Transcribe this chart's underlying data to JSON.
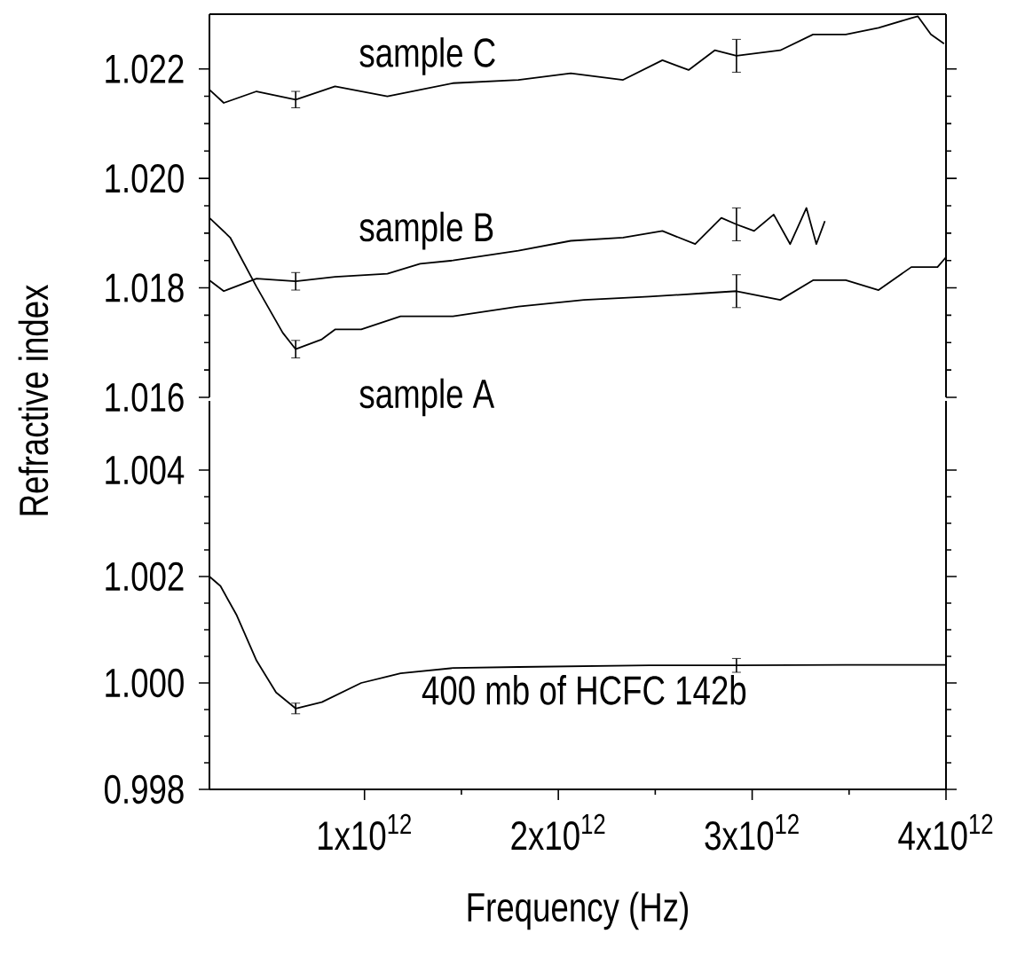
{
  "chart_data": [
    {
      "type": "line",
      "xlim": [
        200000000000.0,
        4000000000000.0
      ],
      "ylim": [
        1.016,
        1.023
      ],
      "yticks": [
        1.016,
        1.018,
        {
          "value": 1.02,
          "label": "1.020"
        },
        1.022
      ],
      "tick_labels": "y",
      "line_style": "solid",
      "marker": "none",
      "series": [
        {
          "name": "sample C",
          "color": "#000000",
          "x": [
            200000000000.0,
            274000000000.0,
            443000000000.0,
            645000000000.0,
            848000000000.0,
            1118000000000.0,
            1456000000000.0,
            1794000000000.0,
            2064000000000.0,
            2334000000000.0,
            2537000000000.0,
            2672000000000.0,
            2807000000000.0,
            2919000000000.0,
            3145000000000.0,
            3314000000000.0,
            3483000000000.0,
            3652000000000.0,
            3821000000000.0,
            3855000000000.0,
            3922000000000.0,
            3990000000000.0
          ],
          "values": [
            1.02162,
            1.02138,
            1.02159,
            1.02144,
            1.02168,
            1.0215,
            1.02174,
            1.0218,
            1.02192,
            1.0218,
            1.02216,
            1.02198,
            1.02234,
            1.02224,
            1.02234,
            1.02263,
            1.02263,
            1.02275,
            1.02293,
            1.02296,
            1.02263,
            1.02246
          ],
          "errors": [
            null,
            null,
            null,
            0.00015,
            null,
            null,
            null,
            null,
            null,
            null,
            null,
            null,
            null,
            0.0003,
            null,
            null,
            null,
            null,
            null,
            null,
            null,
            null
          ]
        },
        {
          "name": "sample B",
          "color": "#000000",
          "x": [
            200000000000.0,
            274000000000.0,
            443000000000.0,
            645000000000.0,
            848000000000.0,
            1118000000000.0,
            1287000000000.0,
            1456000000000.0,
            1794000000000.0,
            2064000000000.0,
            2334000000000.0,
            2537000000000.0,
            2706000000000.0,
            2841000000000.0,
            2919000000000.0,
            3010000000000.0,
            3111000000000.0,
            3196000000000.0,
            3280000000000.0,
            3331000000000.0,
            3375000000000.0
          ],
          "values": [
            1.01814,
            1.01794,
            1.01817,
            1.01812,
            1.0182,
            1.01826,
            1.01844,
            1.0185,
            1.01868,
            1.01886,
            1.01892,
            1.01904,
            1.0188,
            1.01928,
            1.01916,
            1.01904,
            1.01934,
            1.0188,
            1.01946,
            1.0188,
            1.01922
          ],
          "errors": [
            null,
            null,
            null,
            0.00016,
            null,
            null,
            null,
            null,
            null,
            null,
            null,
            null,
            null,
            null,
            0.0003,
            null,
            null,
            null,
            null,
            null,
            null
          ]
        },
        {
          "name": "sample A",
          "color": "#000000",
          "x": [
            200000000000.0,
            307000000000.0,
            443000000000.0,
            578000000000.0,
            645000000000.0,
            780000000000.0,
            848000000000.0,
            983000000000.0,
            1186000000000.0,
            1456000000000.0,
            1794000000000.0,
            2132000000000.0,
            2470000000000.0,
            2740000000000.0,
            2919000000000.0,
            3145000000000.0,
            3314000000000.0,
            3483000000000.0,
            3652000000000.0,
            3821000000000.0,
            3956000000000.0,
            4000000000000.0
          ],
          "values": [
            1.01928,
            1.01892,
            1.01802,
            1.01718,
            1.01688,
            1.01706,
            1.01724,
            1.01724,
            1.01748,
            1.01748,
            1.01766,
            1.01778,
            1.01784,
            1.0179,
            1.01794,
            1.01778,
            1.01814,
            1.01814,
            1.01796,
            1.01838,
            1.01838,
            1.01856
          ],
          "errors": [
            null,
            null,
            null,
            null,
            0.00016,
            null,
            null,
            null,
            null,
            null,
            null,
            null,
            null,
            null,
            0.0003,
            null,
            null,
            null,
            null,
            null,
            null,
            null
          ]
        }
      ]
    },
    {
      "type": "line",
      "xlabel": "Frequency (Hz)",
      "ylabel": "Refractive index",
      "xlim": [
        200000000000.0,
        4000000000000.0
      ],
      "ylim": [
        0.998,
        1.0053
      ],
      "yticks": [
        0.998,
        {
          "value": 1.0,
          "label": "1.000"
        },
        1.002,
        1.004
      ],
      "xticks": [
        {
          "value": 1000000000000.0,
          "label": "1x10$^{12}$"
        },
        {
          "value": 2000000000000.0,
          "label": "2x10$^{12}$"
        },
        {
          "value": 3000000000000.0,
          "label": "3x10$^{12}$"
        },
        {
          "value": 4000000000000.0,
          "label": "4x10$^{12}$"
        }
      ],
      "line_style": "solid",
      "marker": "none",
      "series": [
        {
          "name": "400 mb of HCFC 142b",
          "color": "#000000",
          "x": [
            200000000000.0,
            257000000000.0,
            341000000000.0,
            443000000000.0,
            544000000000.0,
            645000000000.0,
            780000000000.0,
            983000000000.0,
            1186000000000.0,
            1456000000000.0,
            1794000000000.0,
            2470000000000.0,
            2919000000000.0,
            3483000000000.0,
            4000000000000.0
          ],
          "values": [
            1.002,
            1.00182,
            1.00127,
            1.00042,
            0.99982,
            0.99952,
            0.99964,
            1.0,
            1.00018,
            1.00028,
            1.0003,
            1.00033,
            1.00033,
            1.00034,
            1.00034
          ],
          "errors": [
            null,
            null,
            null,
            null,
            null,
            0.0001,
            null,
            null,
            null,
            null,
            null,
            null,
            0.00013,
            null,
            null
          ]
        }
      ]
    }
  ]
}
